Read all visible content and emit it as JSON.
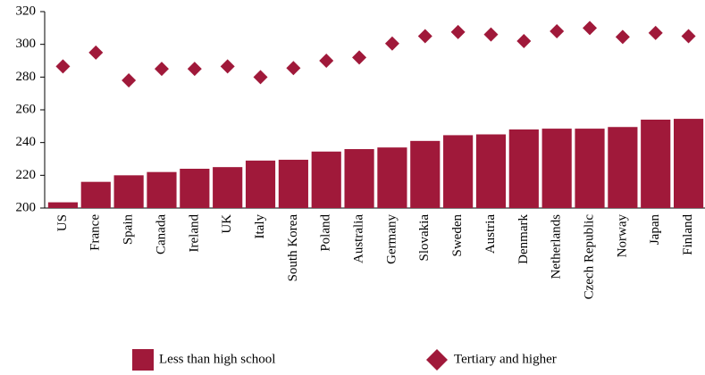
{
  "chart_data": {
    "type": "bar",
    "categories": [
      "US",
      "France",
      "Spain",
      "Canada",
      "Ireland",
      "UK",
      "Italy",
      "South Korea",
      "Poland",
      "Australia",
      "Germany",
      "Slovakia",
      "Sweden",
      "Austria",
      "Denmark",
      "Netherlands",
      "Czech Republic",
      "Norway",
      "Japan",
      "Finland"
    ],
    "series": [
      {
        "name": "Less than high school",
        "type": "bar",
        "color": "#a0193a",
        "values": [
          203.5,
          216,
          220,
          222,
          224,
          225,
          229,
          229.5,
          234.5,
          236,
          237,
          241,
          244.5,
          245,
          248,
          248.5,
          248.5,
          249.5,
          254,
          254.5
        ]
      },
      {
        "name": "Tertiary and higher",
        "type": "scatter",
        "marker": "diamond",
        "color": "#a0193a",
        "values": [
          286.5,
          295,
          278,
          285,
          285,
          286.5,
          280,
          285.5,
          290,
          292,
          300.5,
          305,
          307.5,
          306,
          302,
          308,
          310,
          304.5,
          307,
          305
        ]
      }
    ],
    "ylim": [
      200,
      320
    ],
    "yticks": [
      200,
      220,
      240,
      260,
      280,
      300,
      320
    ],
    "grid": false,
    "legend": "bottom"
  }
}
